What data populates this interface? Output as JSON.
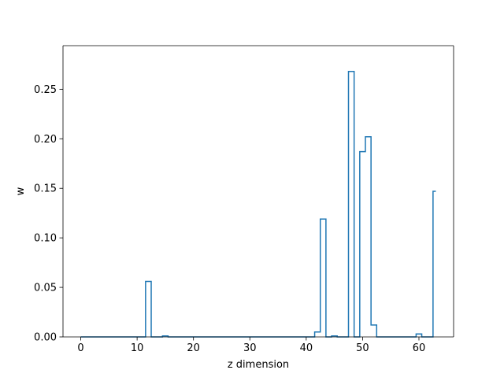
{
  "chart_data": {
    "type": "line",
    "drawstyle": "steps-mid",
    "title": "",
    "xlabel": "z dimension",
    "ylabel": "w",
    "xlim": [
      -3.15,
      66.15
    ],
    "ylim": [
      0.0,
      0.294
    ],
    "x_ticks": [
      0,
      10,
      20,
      30,
      40,
      50,
      60
    ],
    "x_tick_labels": [
      "0",
      "10",
      "20",
      "30",
      "40",
      "50",
      "60"
    ],
    "y_ticks": [
      0.0,
      0.05,
      0.1,
      0.15,
      0.2,
      0.25
    ],
    "y_tick_labels": [
      "0.00",
      "0.05",
      "0.10",
      "0.15",
      "0.20",
      "0.25"
    ],
    "grid": false,
    "legend": "none",
    "series": [
      {
        "color": "#1f77b4",
        "x": [
          0,
          1,
          2,
          3,
          4,
          5,
          6,
          7,
          8,
          9,
          10,
          11,
          12,
          13,
          14,
          15,
          16,
          17,
          18,
          19,
          20,
          21,
          22,
          23,
          24,
          25,
          26,
          27,
          28,
          29,
          30,
          31,
          32,
          33,
          34,
          35,
          36,
          37,
          38,
          39,
          40,
          41,
          42,
          43,
          44,
          45,
          46,
          47,
          48,
          49,
          50,
          51,
          52,
          53,
          54,
          55,
          56,
          57,
          58,
          59,
          60,
          61,
          62,
          63
        ],
        "values": [
          0,
          0,
          0,
          0,
          0,
          0,
          0,
          0,
          0,
          0,
          0,
          0,
          0.056,
          0,
          0,
          0.001,
          0,
          0,
          0,
          0,
          0,
          0,
          0,
          0,
          0,
          0,
          0,
          0,
          0,
          0,
          0,
          0,
          0,
          0,
          0,
          0,
          0,
          0,
          0,
          0,
          0,
          0,
          0.005,
          0.119,
          0,
          0.001,
          0,
          0,
          0.268,
          0,
          0.187,
          0.202,
          0.012,
          0,
          0,
          0,
          0,
          0,
          0,
          0,
          0.003,
          0,
          0,
          0.147
        ]
      }
    ]
  }
}
